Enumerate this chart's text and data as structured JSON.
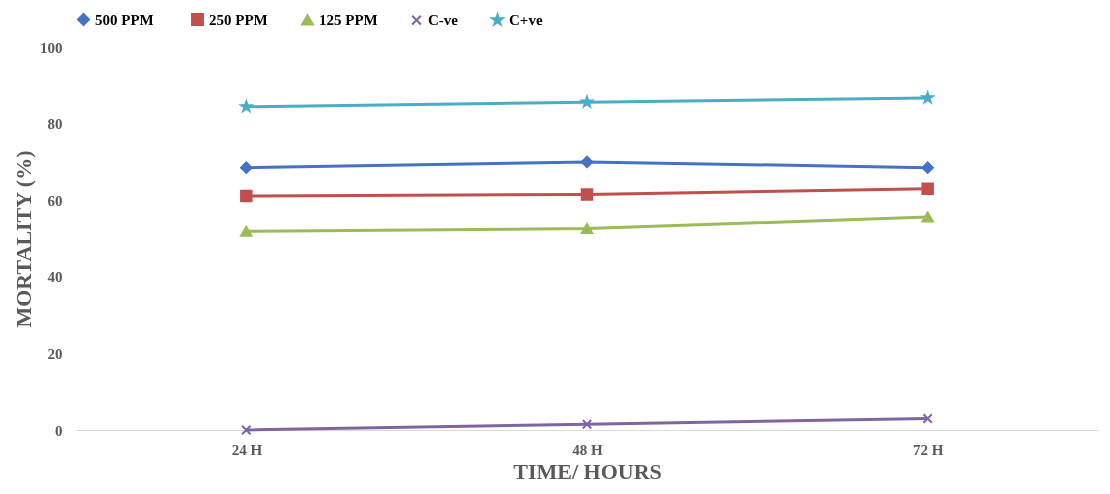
{
  "chart_data": {
    "type": "line",
    "xlabel": "TIME/ HOURS",
    "ylabel": "MORTALITY (%)",
    "categories": [
      "24  H",
      "48  H",
      "72  H"
    ],
    "ylim": [
      0,
      100
    ],
    "yticks": [
      0,
      20,
      40,
      60,
      80,
      100
    ],
    "grid": false,
    "legend": "top",
    "line_style": "solid",
    "series": [
      {
        "name": "500  PPM",
        "color": "#4472c4",
        "marker": "diamond",
        "values": [
          68.5,
          70,
          68.5
        ]
      },
      {
        "name": "250 PPM",
        "color": "#c0504d",
        "marker": "square",
        "values": [
          61.1,
          61.5,
          63
        ]
      },
      {
        "name": "125 PPM",
        "color": "#9bbb59",
        "marker": "triangle",
        "values": [
          51.9,
          52.6,
          55.6
        ]
      },
      {
        "name": "C-ve",
        "color": "#8064a2",
        "marker": "cross",
        "values": [
          0,
          1.5,
          3
        ]
      },
      {
        "name": "C+ve",
        "color": "#4bacc6",
        "marker": "star",
        "values": [
          84.4,
          85.6,
          86.7
        ]
      }
    ]
  }
}
